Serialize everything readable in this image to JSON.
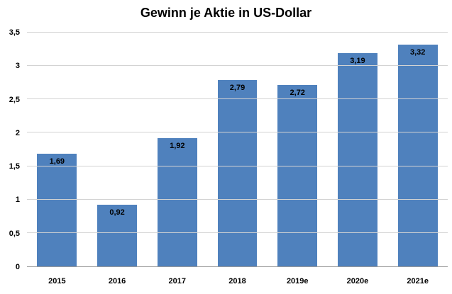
{
  "chart_data": {
    "type": "bar",
    "title": "Gewinn je Aktie in US-Dollar",
    "categories": [
      "2015",
      "2016",
      "2017",
      "2018",
      "2019e",
      "2020e",
      "2021e"
    ],
    "values": [
      1.69,
      0.92,
      1.92,
      2.79,
      2.72,
      3.19,
      3.32
    ],
    "value_labels": [
      "1,69",
      "0,92",
      "1,92",
      "2,79",
      "2,72",
      "3,19",
      "3,32"
    ],
    "xlabel": "",
    "ylabel": "",
    "ylim": [
      0,
      3.5
    ],
    "ytick_values": [
      0,
      0.5,
      1,
      1.5,
      2,
      2.5,
      3,
      3.5
    ],
    "ytick_labels": [
      "0",
      "0,5",
      "1",
      "1,5",
      "2",
      "2,5",
      "3",
      "3,5"
    ],
    "grid": true,
    "legend": "none",
    "bar_color": "#4f81bd",
    "label_color": "#000000",
    "gridline_color": "#d3d3d3",
    "axis_line_color": "#9b9b9b"
  }
}
